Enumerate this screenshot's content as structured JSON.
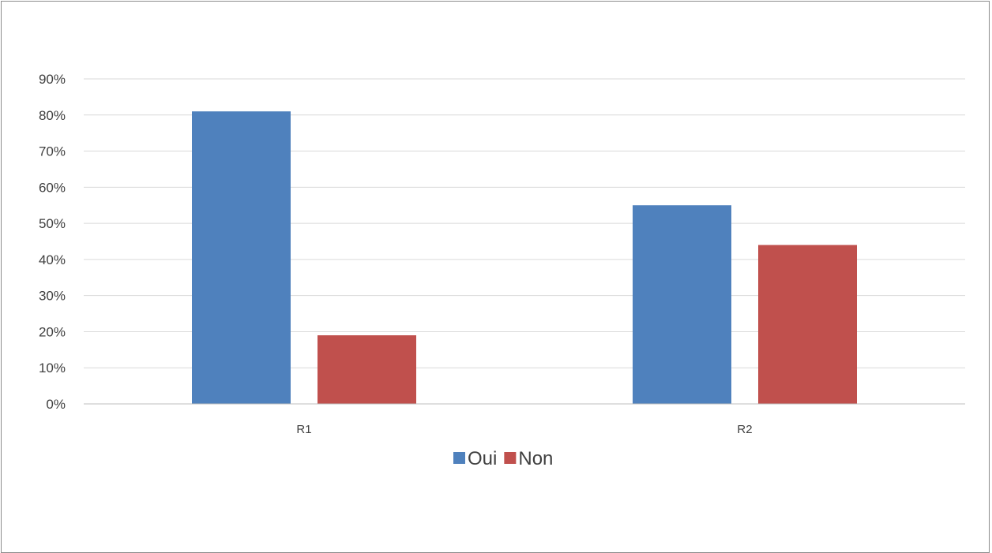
{
  "chart_data": {
    "type": "bar",
    "title": "",
    "xlabel": "",
    "ylabel": "",
    "categories": [
      "R1",
      "R2"
    ],
    "series": [
      {
        "name": "Oui",
        "values": [
          81,
          55
        ],
        "color": "#4f81bd"
      },
      {
        "name": "Non",
        "values": [
          19,
          44
        ],
        "color": "#c0504d"
      }
    ],
    "ylim": [
      0,
      90
    ],
    "yticks": [
      0,
      10,
      20,
      30,
      40,
      50,
      60,
      70,
      80,
      90
    ],
    "ytick_labels": [
      "0%",
      "10%",
      "20%",
      "30%",
      "40%",
      "50%",
      "60%",
      "70%",
      "80%",
      "90%"
    ],
    "grid": true,
    "legend_position": "bottom",
    "gridline_color": "#d9d9d9",
    "axis_color": "#bfbfbf"
  }
}
